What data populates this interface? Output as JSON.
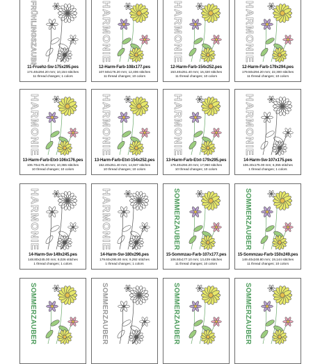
{
  "cards": [
    {
      "name": "11-Fruehz-Sw-175x295.pes",
      "dims": "174.40x294.20 mm; 10,154 stitches",
      "threads": "11 thread changes; 1 colors",
      "word": "FRÜHLINGSZAUBER",
      "style": "outline",
      "colored": false
    },
    {
      "name": "12-Harm-Farb-108x177.pes",
      "dims": "107.50x176.20 mm; 12,406 stitches",
      "threads": "11 thread changes; 10 colors",
      "word": "HARMONIE",
      "style": "outline",
      "colored": true
    },
    {
      "name": "12-Harm-Farb-154x252.pes",
      "dims": "153.40x251.40 mm; 16,320 stitches",
      "threads": "11 thread changes; 10 colors",
      "word": "HARMONIE",
      "style": "outline",
      "colored": true
    },
    {
      "name": "12-Harm-Farb-179x294.pes",
      "dims": "179.50x294.20 mm; 22,300 stitches",
      "threads": "11 thread changes; 10 colors",
      "word": "HARMONIE",
      "style": "outline",
      "colored": true
    },
    {
      "name": "13-Harm-Farb-Etxt-106x176.pes",
      "dims": "106.70x175.40 mm; 10,365 stitches",
      "threads": "10 thread changes; 10 colors",
      "word": "HARMONIE",
      "style": "outline",
      "colored": true
    },
    {
      "name": "13-Harm-Farb-Etxt-154x252.pes",
      "dims": "152.40x251.40 mm; 14,947 stitches",
      "threads": "10 thread changes; 10 colors",
      "word": "HARMONIE",
      "style": "outline",
      "colored": true
    },
    {
      "name": "13-Harm-Farb-Etxt-179x295.pes",
      "dims": "178.40x294.20 mm; 17,960 stitches",
      "threads": "10 thread changes; 10 colors",
      "word": "HARMONIE",
      "style": "outline",
      "colored": true
    },
    {
      "name": "14-Harm-Sw-107x175.pes",
      "dims": "106.40x175.00 mm; 6,355 stitches",
      "threads": "1 thread changes; 1 colors",
      "word": "HARMONIE",
      "style": "outline",
      "colored": false
    },
    {
      "name": "14-Harm-Sw-149x245.pes",
      "dims": "148.80x245.00 mm; 8,026 stitches",
      "threads": "1 thread changes; 1 colors",
      "word": "HARMONIE",
      "style": "outline",
      "colored": false
    },
    {
      "name": "14-Harm-Sw-180x296.pes",
      "dims": "179.60x295.80 mm; 9,292 stitches",
      "threads": "1 thread changes; 1 colors",
      "word": "HARMONIE",
      "style": "outline",
      "colored": false
    },
    {
      "name": "15-Sommzau-Farb-107x177.pes",
      "dims": "106.50x177.10 mm; 13,439 stitches",
      "threads": "11 thread changes; 10 colors",
      "word": "SOMMERZAUBER",
      "style": "green",
      "colored": true
    },
    {
      "name": "15-Sommzau-Farb-150x249.pes",
      "dims": "149.40x248.80 mm; 19,144 stitches",
      "threads": "11 thread changes; 10 colors",
      "word": "SOMMERZAUBER",
      "style": "green",
      "colored": true
    },
    {
      "name": "",
      "dims": "",
      "threads": "",
      "word": "SOMMERZAUBER",
      "style": "green",
      "colored": true
    },
    {
      "name": "",
      "dims": "",
      "threads": "",
      "word": "SOMMERZAUBER",
      "style": "grey",
      "colored": false
    },
    {
      "name": "",
      "dims": "",
      "threads": "",
      "word": "SOMMERZAUBER",
      "style": "green",
      "colored": true
    },
    {
      "name": "",
      "dims": "",
      "threads": "",
      "word": "SOMMERZAUBER",
      "style": "green",
      "colored": true
    }
  ],
  "colors": {
    "border": "#6a6a6a",
    "outline_text": "#8a8a8a",
    "green_text": "#4f9d5e",
    "yellow_flower": "#e7e86a",
    "purple_flower": "#b9a0cf",
    "pink_flower": "#e8a0b4",
    "leaf": "#9ccd7e"
  }
}
